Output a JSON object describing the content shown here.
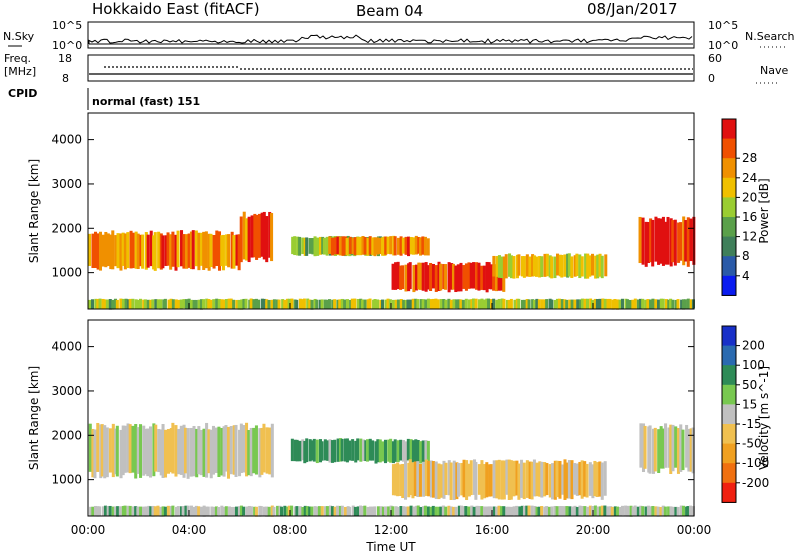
{
  "header": {
    "title": "Hokkaido East (fitACF)",
    "beam": "Beam 04",
    "date": "08/Jan/2017"
  },
  "strips": {
    "nsky_label": "N.Sky",
    "nsky_ticks": [
      "10^5",
      "10^0"
    ],
    "nsearch_label": "N.Search",
    "nsearch_ticks": [
      "10^5",
      "10^0"
    ],
    "freq_label": "Freq.",
    "freq_unit": "[MHz]",
    "freq_ticks": [
      "18",
      "8"
    ],
    "nave_label": "Nave",
    "nave_ticks": [
      "60",
      "0"
    ],
    "cpid_label": "CPID",
    "cpid_value": "normal (fast) 151"
  },
  "chart_data": [
    {
      "type": "heatmap",
      "panel": "power",
      "xlabel": "Time UT",
      "ylabel": "Slant Range [km]",
      "x_ticks": [
        "00:00",
        "04:00",
        "08:00",
        "12:00",
        "16:00",
        "20:00",
        "00:00"
      ],
      "y_ticks": [
        "1000",
        "2000",
        "3000",
        "4000"
      ],
      "ylim": [
        180,
        4600
      ],
      "colorbar_label": "Power [dB]",
      "colorbar_ticks": [
        "4",
        "8",
        "12",
        "16",
        "20",
        "24",
        "28"
      ],
      "colorbar_colors": [
        "#0a1cf0",
        "#2a5aa8",
        "#3f7f5a",
        "#5aa04a",
        "#9acd32",
        "#f0c000",
        "#f09000",
        "#f05000",
        "#e01010"
      ],
      "echo_regions": [
        {
          "t_start": 0.0,
          "t_end": 6.0,
          "range_low": 1100,
          "range_high": 1900,
          "typical_db": 22
        },
        {
          "t_start": 6.0,
          "t_end": 7.3,
          "range_low": 1300,
          "range_high": 2300,
          "typical_db": 24
        },
        {
          "t_start": 8.0,
          "t_end": 11.8,
          "range_low": 1400,
          "range_high": 1800,
          "typical_db": 14
        },
        {
          "t_start": 9.5,
          "t_end": 13.5,
          "range_low": 1400,
          "range_high": 1800,
          "typical_db": 22
        },
        {
          "t_start": 12.0,
          "t_end": 16.5,
          "range_low": 600,
          "range_high": 1200,
          "typical_db": 26
        },
        {
          "t_start": 16.0,
          "t_end": 20.5,
          "range_low": 900,
          "range_high": 1400,
          "typical_db": 18
        },
        {
          "t_start": 21.8,
          "t_end": 24.0,
          "range_low": 1200,
          "range_high": 2200,
          "typical_db": 26
        },
        {
          "t_start": 0.0,
          "t_end": 24.0,
          "range_low": 180,
          "range_high": 400,
          "typical_db": 14
        }
      ]
    },
    {
      "type": "heatmap",
      "panel": "velocity",
      "xlabel": "Time UT",
      "ylabel": "Slant Range [km]",
      "x_ticks": [
        "00:00",
        "04:00",
        "08:00",
        "12:00",
        "16:00",
        "20:00",
        "00:00"
      ],
      "y_ticks": [
        "1000",
        "2000",
        "3000",
        "4000"
      ],
      "ylim": [
        180,
        4600
      ],
      "colorbar_label": "Velocity [m s^-1]",
      "colorbar_ticks": [
        "200",
        "100",
        "50",
        "15",
        "-15",
        "-50",
        "-100",
        "-200"
      ],
      "colorbar_colors": [
        "#1830c8",
        "#2a6ab0",
        "#2e8b57",
        "#78c850",
        "#c0c0c0",
        "#f0c050",
        "#f0a020",
        "#f07010",
        "#f02010"
      ],
      "echo_regions": [
        {
          "t_start": 0.0,
          "t_end": 7.3,
          "range_low": 1100,
          "range_high": 2200,
          "typical_ms": 0
        },
        {
          "t_start": 8.0,
          "t_end": 13.5,
          "range_low": 1400,
          "range_high": 1900,
          "typical_ms": 40
        },
        {
          "t_start": 12.0,
          "t_end": 20.5,
          "range_low": 600,
          "range_high": 1400,
          "typical_ms": -20
        },
        {
          "t_start": 21.8,
          "t_end": 24.0,
          "range_low": 1200,
          "range_high": 2200,
          "typical_ms": 0
        },
        {
          "t_start": 0.0,
          "t_end": 24.0,
          "range_low": 180,
          "range_high": 400,
          "typical_ms": 10
        }
      ]
    }
  ]
}
